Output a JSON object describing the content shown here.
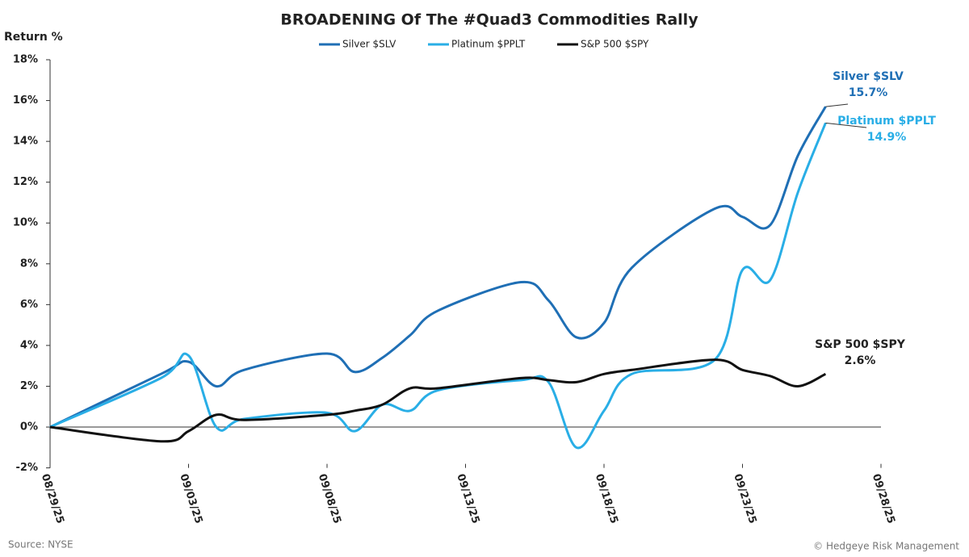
{
  "chart_data": {
    "type": "line",
    "title": "BROADENING Of The #Quad3 Commodities Rally",
    "ylabel": "Return %",
    "source": "Source: NYSE",
    "credit": "© Hedgeye Risk Management",
    "x": [
      "08/29/25",
      "09/02/25",
      "09/03/25",
      "09/04/25",
      "09/05/25",
      "09/08/25",
      "09/09/25",
      "09/10/25",
      "09/11/25",
      "09/12/25",
      "09/15/25",
      "09/16/25",
      "09/17/25",
      "09/18/25",
      "09/19/25",
      "09/22/25",
      "09/23/25",
      "09/24/25",
      "09/25/25",
      "09/26/25"
    ],
    "xlim": [
      "08/29/25",
      "09/28/25"
    ],
    "xticks": [
      "08/29/25",
      "09/03/25",
      "09/08/25",
      "09/13/25",
      "09/18/25",
      "09/23/25",
      "09/28/25"
    ],
    "ylim": [
      -2,
      18
    ],
    "yticks": [
      {
        "value": -2,
        "label": "-2%"
      },
      {
        "value": 0,
        "label": "0%"
      },
      {
        "value": 2,
        "label": "2%"
      },
      {
        "value": 4,
        "label": "4%"
      },
      {
        "value": 6,
        "label": "6%"
      },
      {
        "value": 8,
        "label": "8%"
      },
      {
        "value": 10,
        "label": "10%"
      },
      {
        "value": 12,
        "label": "12%"
      },
      {
        "value": 14,
        "label": "14%"
      },
      {
        "value": 16,
        "label": "16%"
      },
      {
        "value": 18,
        "label": "18%"
      }
    ],
    "grid": false,
    "legend": "top",
    "series": [
      {
        "name": "Silver $SLV",
        "color": "#1f6fb5",
        "values": [
          0,
          2.6,
          3.2,
          2.0,
          2.8,
          3.6,
          2.7,
          3.4,
          4.5,
          5.7,
          7.1,
          6.2,
          4.4,
          5.1,
          7.8,
          10.7,
          10.3,
          9.9,
          13.3,
          15.7
        ],
        "value_labels": [
          null,
          null,
          null,
          null,
          null,
          null,
          null,
          null,
          null,
          null,
          null,
          null,
          null,
          null,
          null,
          null,
          null,
          null,
          null,
          "15.7%"
        ]
      },
      {
        "name": "Platinum $PPLT",
        "color": "#29aee6",
        "values": [
          0,
          2.4,
          3.5,
          0.0,
          0.4,
          0.7,
          -0.2,
          1.1,
          0.8,
          1.8,
          2.3,
          2.2,
          -1.0,
          0.8,
          2.6,
          3.3,
          7.7,
          7.2,
          11.5,
          14.9
        ],
        "value_labels": [
          null,
          null,
          null,
          null,
          null,
          null,
          null,
          null,
          null,
          null,
          null,
          null,
          null,
          null,
          null,
          null,
          null,
          null,
          null,
          "14.9%"
        ]
      },
      {
        "name": "S&P 500 $SPY",
        "color": "#111111",
        "values": [
          0,
          -0.7,
          -0.2,
          0.6,
          0.35,
          0.6,
          0.8,
          1.1,
          1.9,
          1.9,
          2.4,
          2.3,
          2.2,
          2.6,
          2.8,
          3.3,
          2.8,
          2.5,
          2.0,
          2.6
        ],
        "value_labels": [
          null,
          null,
          null,
          null,
          null,
          null,
          null,
          null,
          null,
          null,
          null,
          null,
          null,
          null,
          null,
          null,
          null,
          null,
          null,
          "2.6%"
        ]
      }
    ]
  }
}
